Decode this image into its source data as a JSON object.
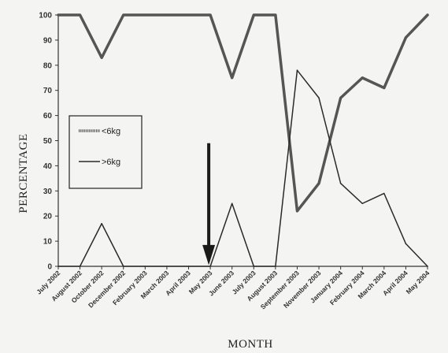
{
  "chart_data": {
    "type": "line",
    "xlabel": "MONTH",
    "ylabel": "PERCENTAGE",
    "ylim": [
      0,
      100
    ],
    "yticks": [
      0,
      10,
      20,
      30,
      40,
      50,
      60,
      70,
      80,
      90,
      100
    ],
    "categories": [
      "July 2002",
      "August 2002",
      "October 2002",
      "December 2002",
      "February 2003",
      "March 2003",
      "April 2003",
      "May 2003",
      "June 2003",
      "July 2003",
      "August 2003",
      "September 2003",
      "November 2003",
      "January 2004",
      "February 2004",
      "March 2004",
      "April 2004",
      "May 2004"
    ],
    "series": [
      {
        "name": "<6kg",
        "color": "#555555",
        "values": [
          100,
          100,
          83,
          100,
          100,
          100,
          100,
          100,
          75,
          100,
          100,
          22,
          33,
          67,
          75,
          71,
          91,
          100
        ]
      },
      {
        "name": ">6kg",
        "color": "#2a2a2a",
        "values": [
          0,
          0,
          17,
          0,
          0,
          0,
          0,
          0,
          25,
          0,
          0,
          78,
          67,
          33,
          25,
          29,
          9,
          0
        ]
      }
    ],
    "legend": "left-middle",
    "grid": false,
    "annotation": {
      "type": "arrow-down",
      "category": "May 2003"
    }
  }
}
